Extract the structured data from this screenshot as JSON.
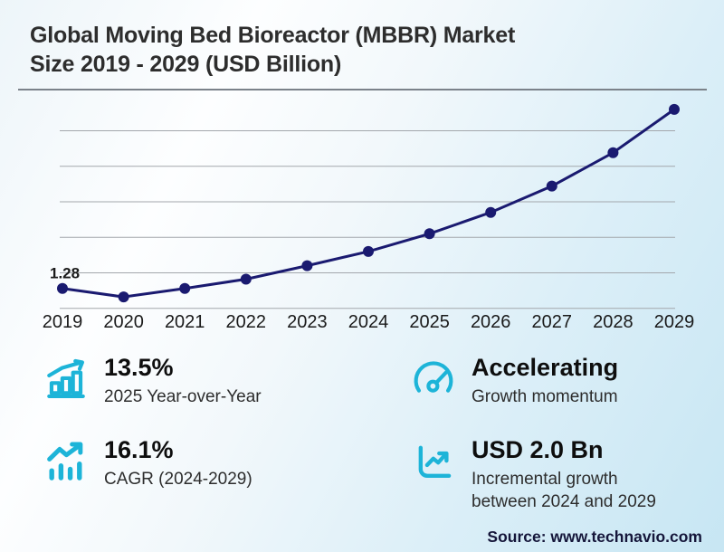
{
  "header": {
    "title_line1": "Global Moving Bed Bioreactor (MBBR) Market",
    "title_line2": "Size 2019 - 2029 (USD Billion)"
  },
  "chart_data": {
    "type": "line",
    "title": "Global Moving Bed Bioreactor (MBBR) Market Size 2019 - 2029 (USD Billion)",
    "x": [
      2019,
      2020,
      2021,
      2022,
      2023,
      2024,
      2025,
      2026,
      2027,
      2028,
      2029
    ],
    "series": [
      {
        "name": "Market size (USD Billion)",
        "values": [
          1.28,
          1.16,
          1.28,
          1.41,
          1.6,
          1.8,
          2.05,
          2.35,
          2.72,
          3.19,
          3.8
        ]
      }
    ],
    "annotations": [
      {
        "x": 2019,
        "text": "1.28"
      }
    ],
    "xlabel": "",
    "ylabel": "",
    "ylim": [
      0.97,
      4.0
    ],
    "gridline_values": [
      1.0,
      1.5,
      2.0,
      2.5,
      3.0,
      3.5
    ],
    "grid": true,
    "legend": false,
    "line_color": "#1a1a70",
    "grid_color": "#a3a7ac",
    "tick_color": "#1a1a1a"
  },
  "stats": [
    {
      "icon": "bar-chart-growth-icon",
      "value": "13.5%",
      "label": "2025 Year-over-Year"
    },
    {
      "icon": "speedometer-icon",
      "value": "Accelerating",
      "label": "Growth momentum"
    },
    {
      "icon": "trend-line-bars-icon",
      "value": "16.1%",
      "label": "CAGR (2024-2029)"
    },
    {
      "icon": "axis-chart-icon",
      "value": "USD 2.0 Bn",
      "label": "Incremental growth between 2024 and 2029"
    }
  ],
  "footer": {
    "source": "Source: www.technavio.com"
  },
  "colors": {
    "accent": "#1db4d8",
    "line": "#1a1a70"
  }
}
